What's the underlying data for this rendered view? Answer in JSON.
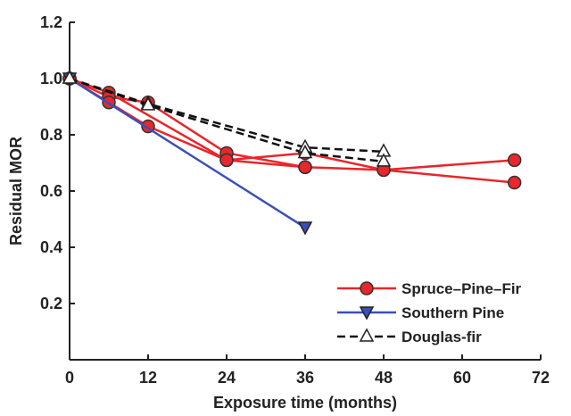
{
  "chart_data": {
    "type": "line",
    "xlabel": "Exposure time (months)",
    "ylabel": "Residual MOR",
    "xlim": [
      0,
      72
    ],
    "ylim": [
      0,
      1.2
    ],
    "x_ticks": [
      "0",
      "12",
      "24",
      "36",
      "48",
      "60",
      "72"
    ],
    "y_ticks": [
      "0.2",
      "0.4",
      "0.6",
      "0.8",
      "1.0",
      "1.2"
    ],
    "grid": false,
    "legend_position": "bottom-right",
    "series": [
      {
        "name": "Spruce–Pine–Fir",
        "color": "#e8262b",
        "marker": "circle",
        "lines": [
          [
            [
              0,
              1.0
            ],
            [
              6,
              0.95
            ],
            [
              24,
              0.71
            ],
            [
              36,
              0.735
            ],
            [
              48,
              0.675
            ],
            [
              68,
              0.71
            ]
          ],
          [
            [
              0,
              1.0
            ],
            [
              6,
              0.935
            ],
            [
              12,
              0.915
            ],
            [
              24,
              0.735
            ],
            [
              36,
              0.685
            ],
            [
              48,
              0.675
            ],
            [
              68,
              0.63
            ]
          ],
          [
            [
              0,
              1.0
            ],
            [
              6,
              0.915
            ],
            [
              12,
              0.83
            ],
            [
              24,
              0.71
            ],
            [
              36,
              0.685
            ]
          ]
        ]
      },
      {
        "name": "Southern Pine",
        "color": "#3b4fb8",
        "marker": "triangle-down",
        "lines": [
          [
            [
              0,
              1.0
            ],
            [
              36,
              0.47
            ]
          ]
        ]
      },
      {
        "name": "Douglas-fir",
        "color": "#111111",
        "marker": "triangle-up-open",
        "dashed": true,
        "lines": [
          [
            [
              0,
              1.0
            ],
            [
              12,
              0.91
            ],
            [
              36,
              0.755
            ],
            [
              48,
              0.74
            ]
          ],
          [
            [
              0,
              1.0
            ],
            [
              12,
              0.905
            ],
            [
              36,
              0.735
            ],
            [
              48,
              0.705
            ]
          ]
        ]
      }
    ]
  }
}
